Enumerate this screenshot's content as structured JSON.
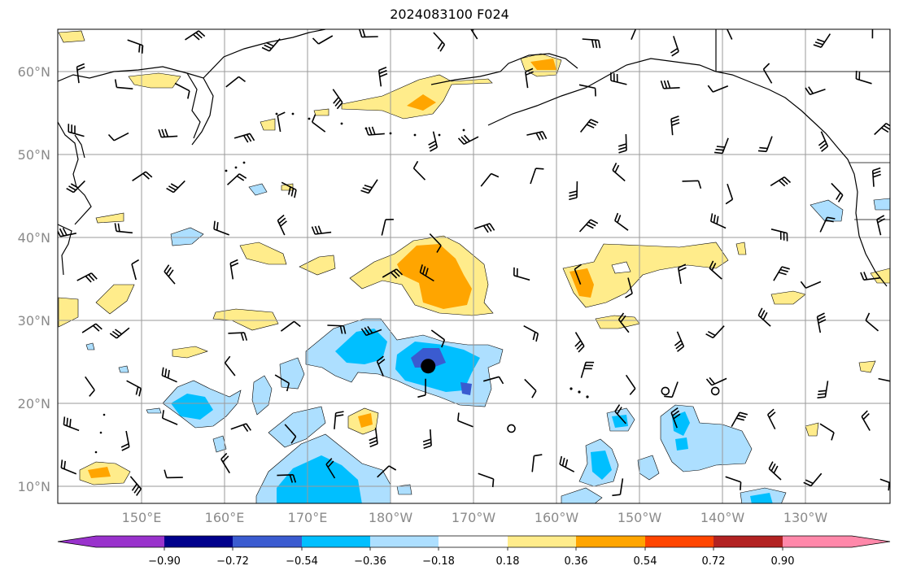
{
  "title": "2024083100 F024",
  "lat_labels": [
    "60°N",
    "50°N",
    "40°N",
    "30°N",
    "20°N",
    "10°N"
  ],
  "lon_labels": [
    "150°E",
    "160°E",
    "170°E",
    "180°W",
    "170°W",
    "160°W",
    "150°W",
    "140°W",
    "130°W"
  ],
  "colorbar": {
    "colors": [
      "#9932CC",
      "#00008B",
      "#3A5BD0",
      "#00BFFF",
      "#ADDFFF",
      "#FFFFFF",
      "#FFEC8B",
      "#FFA500",
      "#FF4500",
      "#B22222",
      "#FF88AA"
    ],
    "tick_labels": [
      "−0.90",
      "−0.72",
      "−0.54",
      "−0.36",
      "−0.18",
      "0.18",
      "0.36",
      "0.54",
      "0.72",
      "0.90"
    ]
  },
  "map_extent": {
    "lon_min": 140,
    "lon_max": 240,
    "lat_min": 8,
    "lat_max": 65
  },
  "gridlines": true,
  "markers": [
    {
      "kind": "filled-dot",
      "lon": 184.5,
      "lat": 24.5
    },
    {
      "kind": "open-circle",
      "lon": 213,
      "lat": 21.5
    },
    {
      "kind": "open-circle",
      "lon": 219,
      "lat": 21.5
    },
    {
      "kind": "open-circle",
      "lon": 194.5,
      "lat": 17
    }
  ]
}
